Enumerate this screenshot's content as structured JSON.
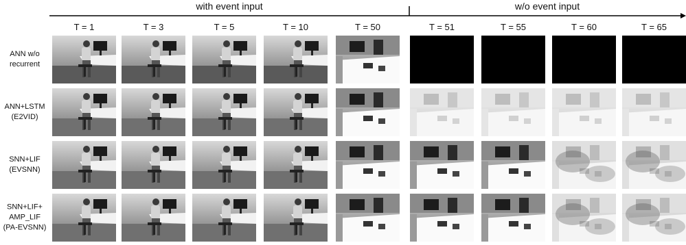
{
  "groups": [
    {
      "label": "with event input"
    },
    {
      "label": "w/o event input"
    }
  ],
  "columns": [
    "T = 1",
    "T = 3",
    "T = 5",
    "T = 10",
    "T = 50",
    "T = 51",
    "T = 55",
    "T = 60",
    "T = 65"
  ],
  "rows": [
    {
      "lines": [
        "ANN w/o",
        "recurrent"
      ]
    },
    {
      "lines": [
        "ANN+LSTM",
        "(E2VID)"
      ]
    },
    {
      "lines": [
        "SNN+LIF",
        "(EVSNN)"
      ]
    },
    {
      "lines": [
        "SNN+LIF+",
        "AMP_LIF",
        "(PA-EVSNN)"
      ]
    }
  ]
}
